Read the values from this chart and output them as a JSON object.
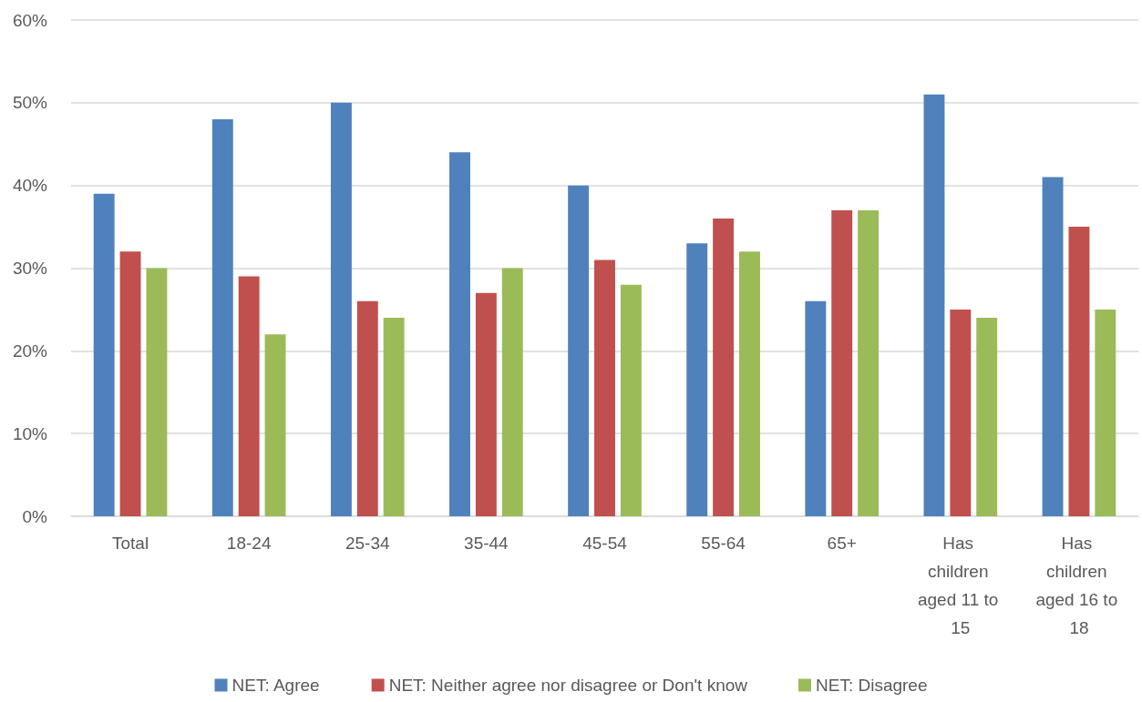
{
  "chart_data": {
    "type": "bar",
    "categories": [
      "Total",
      "18-24",
      "25-34",
      "35-44",
      "45-54",
      "55-64",
      "65+",
      "Has children aged 11 to 15",
      "Has children aged 16 to 18"
    ],
    "series": [
      {
        "name": "NET: Agree",
        "color": "#4f81bd",
        "values": [
          39,
          48,
          50,
          44,
          40,
          33,
          26,
          51,
          41
        ]
      },
      {
        "name": "NET: Neither agree nor disagree or Don't know",
        "color": "#c0504d",
        "values": [
          32,
          29,
          26,
          27,
          31,
          36,
          37,
          25,
          35
        ]
      },
      {
        "name": "NET: Disagree",
        "color": "#9bbb59",
        "values": [
          30,
          22,
          24,
          30,
          28,
          32,
          37,
          24,
          25
        ]
      }
    ],
    "ylim": [
      0,
      60
    ],
    "yticks": [
      {
        "value": 0,
        "label": "0%"
      },
      {
        "value": 10,
        "label": "10%"
      },
      {
        "value": 20,
        "label": "20%"
      },
      {
        "value": 30,
        "label": "30%"
      },
      {
        "value": 40,
        "label": "40%"
      },
      {
        "value": 50,
        "label": "50%"
      },
      {
        "value": 60,
        "label": "60%"
      }
    ],
    "grid": "y",
    "legend": "bottom"
  }
}
